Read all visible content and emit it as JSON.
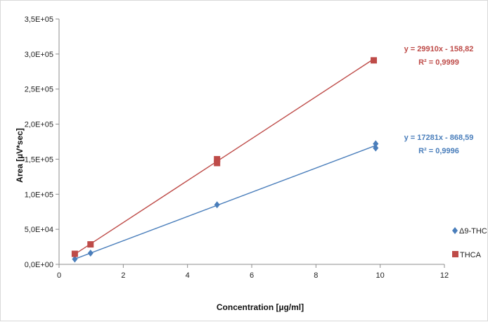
{
  "chart_data": {
    "type": "scatter",
    "title": "",
    "xlabel": "Concentration [µg/ml]",
    "ylabel": "Area [µV*sec]",
    "xlim": [
      0,
      12
    ],
    "ylim": [
      0,
      350000
    ],
    "x_ticks": [
      0,
      2,
      4,
      6,
      8,
      10,
      12
    ],
    "x_tick_labels": [
      "0",
      "2",
      "4",
      "6",
      "8",
      "10",
      "12"
    ],
    "y_ticks": [
      0,
      50000,
      100000,
      150000,
      200000,
      250000,
      300000,
      350000
    ],
    "y_tick_labels": [
      "0,0E+00",
      "5,0E+04",
      "1,0E+05",
      "1,5E+05",
      "2,0E+05",
      "2,5E+05",
      "3,0E+05",
      "3,5E+05"
    ],
    "grid": false,
    "legend_position": "right",
    "series": [
      {
        "name": "Δ9-THC",
        "color": "#4a7ebb",
        "marker": "diamond",
        "x": [
          0.49,
          0.98,
          4.92,
          9.86,
          9.86
        ],
        "y": [
          7500,
          16000,
          85000,
          166000,
          172000
        ],
        "trendline": {
          "slope": 17281,
          "intercept": -868.59,
          "x_range": [
            0.49,
            9.86
          ]
        },
        "equation": "y = 17281x - 868,59",
        "r2": "R² = 0,9996"
      },
      {
        "name": "THCA",
        "color": "#be4b48",
        "marker": "square",
        "x": [
          0.49,
          0.98,
          4.92,
          4.92,
          9.8
        ],
        "y": [
          15000,
          28500,
          144500,
          150000,
          291000
        ],
        "trendline": {
          "slope": 29910,
          "intercept": -158.82,
          "x_range": [
            0.49,
            9.8
          ]
        },
        "equation": "y = 29910x - 158,82",
        "r2": "R² = 0,9999"
      }
    ]
  }
}
